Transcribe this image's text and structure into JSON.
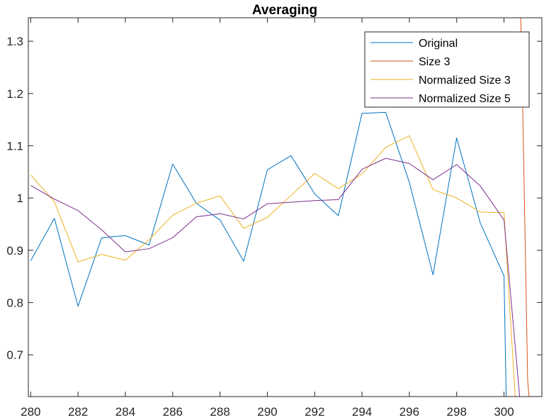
{
  "chart_data": {
    "type": "line",
    "title": "Averaging",
    "xlabel": "",
    "ylabel": "",
    "xlim": [
      279.9,
      301.6
    ],
    "ylim": [
      0.62,
      1.345
    ],
    "x_ticks": [
      280,
      282,
      284,
      286,
      288,
      290,
      292,
      294,
      296,
      298,
      300
    ],
    "y_ticks": [
      0.7,
      0.8,
      0.9,
      1.0,
      1.1,
      1.2,
      1.3
    ],
    "y_tick_labels": [
      "0.7",
      "0.8",
      "0.9",
      "1",
      "1.1",
      "1.2",
      "1.3"
    ],
    "grid": false,
    "legend_position": "top-right",
    "series": [
      {
        "name": "Original",
        "color": "#0072BD",
        "x": [
          280,
          281,
          282,
          283,
          284,
          285,
          286,
          287,
          288,
          289,
          290,
          291,
          292,
          293,
          294,
          295,
          296,
          297,
          298,
          299,
          300,
          300.1
        ],
        "y": [
          0.88,
          0.961,
          0.793,
          0.924,
          0.928,
          0.91,
          1.065,
          0.99,
          0.958,
          0.879,
          1.054,
          1.081,
          1.008,
          0.966,
          1.162,
          1.164,
          1.03,
          0.853,
          1.115,
          0.952,
          0.851,
          0.6
        ]
      },
      {
        "name": "Size 3",
        "color": "#D95319",
        "x": [
          300.7,
          300.8,
          301.0,
          301.1
        ],
        "y": [
          1.36,
          1.15,
          0.65,
          0.6
        ]
      },
      {
        "name": "Normalized Size 3",
        "color": "#EDB120",
        "x": [
          280,
          281,
          282,
          283,
          284,
          285,
          286,
          287,
          288,
          289,
          290,
          291,
          292,
          293,
          294,
          295,
          296,
          297,
          298,
          299,
          300,
          300.5
        ],
        "y": [
          1.044,
          0.993,
          0.878,
          0.892,
          0.881,
          0.92,
          0.967,
          0.99,
          1.004,
          0.942,
          0.963,
          1.005,
          1.047,
          1.018,
          1.046,
          1.097,
          1.119,
          1.016,
          1.0,
          0.973,
          0.972,
          0.6
        ]
      },
      {
        "name": "Normalized Size 5",
        "color": "#7E2F8E",
        "x": [
          280,
          281,
          282,
          283,
          284,
          285,
          286,
          287,
          288,
          289,
          290,
          291,
          292,
          293,
          294,
          295,
          296,
          297,
          298,
          299,
          300,
          300.7
        ],
        "y": [
          1.024,
          0.998,
          0.976,
          0.939,
          0.897,
          0.903,
          0.924,
          0.964,
          0.97,
          0.96,
          0.989,
          0.992,
          0.995,
          0.997,
          1.055,
          1.076,
          1.066,
          1.035,
          1.064,
          1.023,
          0.958,
          0.6
        ]
      }
    ]
  }
}
